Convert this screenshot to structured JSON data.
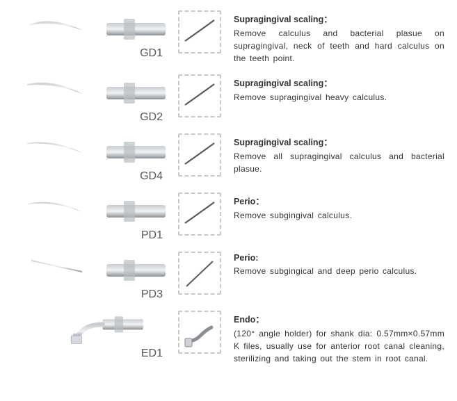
{
  "items": [
    {
      "code": "GD1",
      "title": "Supragingival scaling：",
      "body": "Remove calculus and bacterial plasue on supragingival, neck of teeth and hard calculus on the teeth point.",
      "tip_shape": "hook-up",
      "tool_color_start": "#c8ccd0",
      "tool_color_end": "#8a8f94",
      "shank_color": "#b7bdc2",
      "thumb_stroke": "#5a5a5a"
    },
    {
      "code": "GD2",
      "title": "Supragingival scaling：",
      "body": "Remove supragingival heavy calculus.",
      "tip_shape": "hook-up-long",
      "tool_color_start": "#c8ccd0",
      "tool_color_end": "#8a8f94",
      "shank_color": "#b7bdc2",
      "thumb_stroke": "#5a5a5a"
    },
    {
      "code": "GD4",
      "title": "Supragingival scaling：",
      "body": "Remove all supragingival calculus and bacterial plasue.",
      "tip_shape": "hook-up-thin",
      "tool_color_start": "#c8ccd0",
      "tool_color_end": "#8a8f94",
      "shank_color": "#b7bdc2",
      "thumb_stroke": "#5a5a5a"
    },
    {
      "code": "PD1",
      "title": "Perio：",
      "body": "Remove subgingival calculus.",
      "tip_shape": "hook-up-fine",
      "tool_color_start": "#c8ccd0",
      "tool_color_end": "#8a8f94",
      "shank_color": "#b7bdc2",
      "thumb_stroke": "#5a5a5a"
    },
    {
      "code": "PD3",
      "title": "Perio:",
      "body": "Remove subgingical and deep perio calculus.",
      "tip_shape": "straight",
      "tool_color_start": "#c8ccd0",
      "tool_color_end": "#8a8f94",
      "shank_color": "#b7bdc2",
      "thumb_stroke": "#5a5a5a"
    },
    {
      "code": "ED1",
      "title": "Endo：",
      "body": "(120° angle holder) for shank dia: 0.57mm×0.57mm K files, usually use for anterior root canal cleaning, sterilizing and taking out the stem in root canal.",
      "tip_shape": "endo",
      "tool_color_start": "#c8ccd0",
      "tool_color_end": "#8a8f94",
      "shank_color": "#b7bdc2",
      "thumb_stroke": "#8a8f94"
    }
  ],
  "dash_color": "#c9c9c9",
  "bg_color": "#ffffff"
}
